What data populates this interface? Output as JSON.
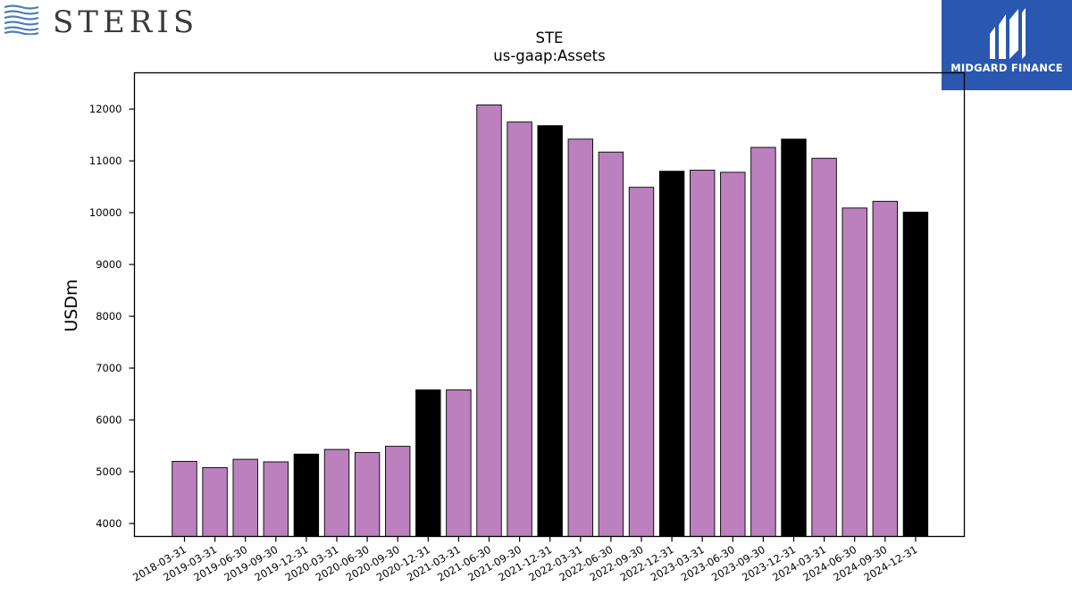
{
  "branding": {
    "company_logo_text": "STERIS",
    "publisher_logo_text": "MIDGARD FINANCE"
  },
  "colors": {
    "bar_default": "#bb80bd",
    "bar_q4": "#000000",
    "logo_blue": "#2a58b0",
    "wave_blue": "#4a7fb8"
  },
  "chart_data": {
    "type": "bar",
    "title": "STE",
    "subtitle": "us-gaap:Assets",
    "xlabel": "",
    "ylabel": "USDm",
    "ylim": [
      3750,
      12700
    ],
    "yticks": [
      4000,
      5000,
      6000,
      7000,
      8000,
      9000,
      10000,
      11000,
      12000
    ],
    "grid": false,
    "categories": [
      "2018-03-31",
      "2019-03-31",
      "2019-06-30",
      "2019-09-30",
      "2019-12-31",
      "2020-03-31",
      "2020-06-30",
      "2020-09-30",
      "2020-12-31",
      "2021-03-31",
      "2021-06-30",
      "2021-09-30",
      "2021-12-31",
      "2022-03-31",
      "2022-06-30",
      "2022-09-30",
      "2022-12-31",
      "2023-03-31",
      "2023-06-30",
      "2023-09-30",
      "2023-12-31",
      "2024-03-31",
      "2024-06-30",
      "2024-09-30",
      "2024-12-31"
    ],
    "values": [
      5200,
      5080,
      5240,
      5190,
      5340,
      5430,
      5370,
      5490,
      6580,
      6580,
      12080,
      11750,
      11680,
      11420,
      11170,
      10490,
      10800,
      10820,
      10780,
      11260,
      11420,
      11050,
      10090,
      10220,
      10010
    ],
    "highlight_color_rule": "black bars mark quarters ending 12-31 (except 2018-03-31 and 2021-06-30 / 2019 Q4)"
  }
}
